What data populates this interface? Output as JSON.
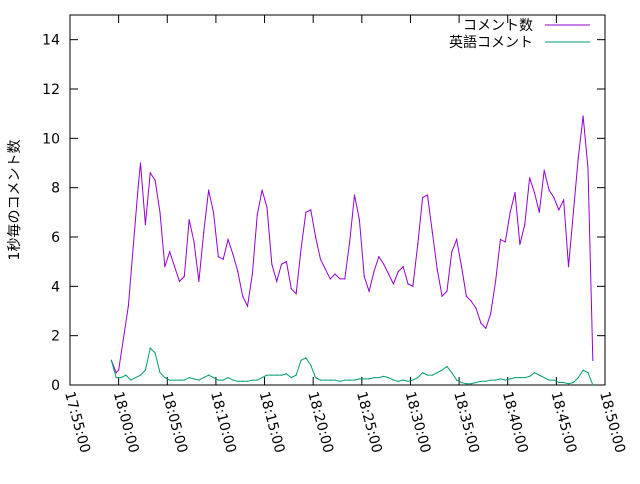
{
  "chart_data": {
    "type": "line",
    "ylabel": "1秒毎のコメント数",
    "xlabel": "",
    "title": "",
    "ylim": [
      0,
      15
    ],
    "yticks": [
      0,
      2,
      4,
      6,
      8,
      10,
      12,
      14
    ],
    "xlim": [
      "17:55:00",
      "18:50:00"
    ],
    "xticks": [
      "17:55:00",
      "18:00:00",
      "18:05:00",
      "18:10:00",
      "18:15:00",
      "18:20:00",
      "18:25:00",
      "18:30:00",
      "18:35:00",
      "18:40:00",
      "18:45:00",
      "18:50:00"
    ],
    "grid": false,
    "legend_position": "top-right",
    "series": [
      {
        "name": "コメント数",
        "color": "#9400d3",
        "points": [
          [
            "17:59:15",
            1.0
          ],
          [
            "17:59:45",
            0.5
          ],
          [
            "18:00:00",
            0.6
          ],
          [
            "18:01:00",
            3.2
          ],
          [
            "18:02:00",
            8.0
          ],
          [
            "18:02:15",
            9.0
          ],
          [
            "18:02:45",
            6.5
          ],
          [
            "18:03:15",
            8.6
          ],
          [
            "18:03:45",
            8.3
          ],
          [
            "18:04:15",
            7.0
          ],
          [
            "18:04:45",
            4.8
          ],
          [
            "18:05:15",
            5.4
          ],
          [
            "18:05:45",
            4.8
          ],
          [
            "18:06:15",
            4.2
          ],
          [
            "18:06:45",
            4.4
          ],
          [
            "18:07:15",
            6.7
          ],
          [
            "18:07:45",
            5.8
          ],
          [
            "18:08:15",
            4.2
          ],
          [
            "18:08:45",
            6.2
          ],
          [
            "18:09:15",
            7.9
          ],
          [
            "18:09:45",
            7.0
          ],
          [
            "18:10:15",
            5.2
          ],
          [
            "18:10:45",
            5.1
          ],
          [
            "18:11:15",
            5.9
          ],
          [
            "18:11:45",
            5.3
          ],
          [
            "18:12:15",
            4.6
          ],
          [
            "18:12:45",
            3.6
          ],
          [
            "18:13:15",
            3.2
          ],
          [
            "18:13:45",
            4.5
          ],
          [
            "18:14:15",
            6.9
          ],
          [
            "18:14:45",
            7.9
          ],
          [
            "18:15:15",
            7.2
          ],
          [
            "18:15:45",
            4.9
          ],
          [
            "18:16:15",
            4.2
          ],
          [
            "18:16:45",
            4.9
          ],
          [
            "18:17:15",
            5.0
          ],
          [
            "18:17:45",
            3.9
          ],
          [
            "18:18:15",
            3.7
          ],
          [
            "18:18:45",
            5.5
          ],
          [
            "18:19:15",
            7.0
          ],
          [
            "18:19:45",
            7.1
          ],
          [
            "18:20:15",
            6.0
          ],
          [
            "18:20:45",
            5.1
          ],
          [
            "18:21:15",
            4.7
          ],
          [
            "18:21:45",
            4.3
          ],
          [
            "18:22:15",
            4.5
          ],
          [
            "18:22:45",
            4.3
          ],
          [
            "18:23:15",
            4.3
          ],
          [
            "18:23:45",
            5.8
          ],
          [
            "18:24:15",
            7.7
          ],
          [
            "18:24:45",
            6.7
          ],
          [
            "18:25:15",
            4.4
          ],
          [
            "18:25:45",
            3.8
          ],
          [
            "18:26:15",
            4.6
          ],
          [
            "18:26:45",
            5.2
          ],
          [
            "18:27:15",
            4.9
          ],
          [
            "18:27:45",
            4.5
          ],
          [
            "18:28:15",
            4.1
          ],
          [
            "18:28:45",
            4.6
          ],
          [
            "18:29:15",
            4.8
          ],
          [
            "18:29:45",
            4.1
          ],
          [
            "18:30:15",
            4.0
          ],
          [
            "18:30:45",
            5.7
          ],
          [
            "18:31:15",
            7.6
          ],
          [
            "18:31:45",
            7.7
          ],
          [
            "18:32:15",
            6.2
          ],
          [
            "18:32:45",
            4.7
          ],
          [
            "18:33:15",
            3.6
          ],
          [
            "18:33:45",
            3.8
          ],
          [
            "18:34:15",
            5.4
          ],
          [
            "18:34:45",
            5.9
          ],
          [
            "18:35:15",
            4.8
          ],
          [
            "18:35:45",
            3.6
          ],
          [
            "18:36:15",
            3.4
          ],
          [
            "18:36:45",
            3.1
          ],
          [
            "18:37:15",
            2.5
          ],
          [
            "18:37:45",
            2.3
          ],
          [
            "18:38:15",
            2.9
          ],
          [
            "18:38:45",
            4.2
          ],
          [
            "18:39:15",
            5.9
          ],
          [
            "18:39:45",
            5.8
          ],
          [
            "18:40:15",
            7.0
          ],
          [
            "18:40:45",
            7.8
          ],
          [
            "18:41:15",
            5.7
          ],
          [
            "18:41:45",
            6.5
          ],
          [
            "18:42:15",
            8.4
          ],
          [
            "18:42:45",
            7.8
          ],
          [
            "18:43:15",
            7.0
          ],
          [
            "18:43:45",
            8.7
          ],
          [
            "18:44:15",
            7.9
          ],
          [
            "18:44:45",
            7.6
          ],
          [
            "18:45:15",
            7.1
          ],
          [
            "18:45:45",
            7.5
          ],
          [
            "18:46:15",
            4.8
          ],
          [
            "18:46:45",
            7.0
          ],
          [
            "18:47:15",
            9.2
          ],
          [
            "18:47:45",
            10.9
          ],
          [
            "18:48:15",
            8.8
          ],
          [
            "18:48:45",
            1.0
          ]
        ]
      },
      {
        "name": "英語コメント",
        "color": "#009e73",
        "points": [
          [
            "17:59:15",
            1.0
          ],
          [
            "17:59:45",
            0.3
          ],
          [
            "18:00:15",
            0.3
          ],
          [
            "18:00:45",
            0.4
          ],
          [
            "18:01:15",
            0.2
          ],
          [
            "18:01:45",
            0.3
          ],
          [
            "18:02:15",
            0.4
          ],
          [
            "18:02:45",
            0.6
          ],
          [
            "18:03:15",
            1.5
          ],
          [
            "18:03:45",
            1.3
          ],
          [
            "18:04:15",
            0.5
          ],
          [
            "18:04:45",
            0.3
          ],
          [
            "18:05:15",
            0.2
          ],
          [
            "18:05:45",
            0.2
          ],
          [
            "18:06:15",
            0.2
          ],
          [
            "18:06:45",
            0.2
          ],
          [
            "18:07:15",
            0.3
          ],
          [
            "18:07:45",
            0.25
          ],
          [
            "18:08:15",
            0.2
          ],
          [
            "18:08:45",
            0.3
          ],
          [
            "18:09:15",
            0.4
          ],
          [
            "18:09:45",
            0.3
          ],
          [
            "18:10:15",
            0.2
          ],
          [
            "18:10:45",
            0.2
          ],
          [
            "18:11:15",
            0.3
          ],
          [
            "18:11:45",
            0.2
          ],
          [
            "18:12:15",
            0.15
          ],
          [
            "18:12:45",
            0.15
          ],
          [
            "18:13:15",
            0.15
          ],
          [
            "18:13:45",
            0.2
          ],
          [
            "18:14:15",
            0.2
          ],
          [
            "18:14:45",
            0.3
          ],
          [
            "18:15:15",
            0.4
          ],
          [
            "18:15:45",
            0.4
          ],
          [
            "18:16:15",
            0.4
          ],
          [
            "18:16:45",
            0.4
          ],
          [
            "18:17:15",
            0.45
          ],
          [
            "18:17:45",
            0.3
          ],
          [
            "18:18:15",
            0.4
          ],
          [
            "18:18:45",
            1.0
          ],
          [
            "18:19:15",
            1.1
          ],
          [
            "18:19:45",
            0.8
          ],
          [
            "18:20:15",
            0.3
          ],
          [
            "18:20:45",
            0.2
          ],
          [
            "18:21:15",
            0.2
          ],
          [
            "18:21:45",
            0.2
          ],
          [
            "18:22:15",
            0.2
          ],
          [
            "18:22:45",
            0.15
          ],
          [
            "18:23:15",
            0.2
          ],
          [
            "18:23:45",
            0.2
          ],
          [
            "18:24:15",
            0.2
          ],
          [
            "18:24:45",
            0.25
          ],
          [
            "18:25:15",
            0.25
          ],
          [
            "18:25:45",
            0.25
          ],
          [
            "18:26:15",
            0.3
          ],
          [
            "18:26:45",
            0.3
          ],
          [
            "18:27:15",
            0.35
          ],
          [
            "18:27:45",
            0.3
          ],
          [
            "18:28:15",
            0.2
          ],
          [
            "18:28:45",
            0.15
          ],
          [
            "18:29:15",
            0.2
          ],
          [
            "18:29:45",
            0.15
          ],
          [
            "18:30:15",
            0.2
          ],
          [
            "18:30:45",
            0.3
          ],
          [
            "18:31:15",
            0.5
          ],
          [
            "18:31:45",
            0.4
          ],
          [
            "18:32:15",
            0.4
          ],
          [
            "18:32:45",
            0.5
          ],
          [
            "18:33:15",
            0.6
          ],
          [
            "18:33:45",
            0.75
          ],
          [
            "18:34:15",
            0.5
          ],
          [
            "18:34:45",
            0.2
          ],
          [
            "18:35:15",
            0.1
          ],
          [
            "18:35:45",
            0.05
          ],
          [
            "18:36:15",
            0.05
          ],
          [
            "18:36:45",
            0.1
          ],
          [
            "18:37:15",
            0.15
          ],
          [
            "18:37:45",
            0.15
          ],
          [
            "18:38:15",
            0.2
          ],
          [
            "18:38:45",
            0.2
          ],
          [
            "18:39:15",
            0.25
          ],
          [
            "18:39:45",
            0.2
          ],
          [
            "18:40:15",
            0.25
          ],
          [
            "18:40:45",
            0.3
          ],
          [
            "18:41:15",
            0.3
          ],
          [
            "18:41:45",
            0.3
          ],
          [
            "18:42:15",
            0.35
          ],
          [
            "18:42:45",
            0.5
          ],
          [
            "18:43:15",
            0.4
          ],
          [
            "18:43:45",
            0.3
          ],
          [
            "18:44:15",
            0.2
          ],
          [
            "18:44:45",
            0.2
          ],
          [
            "18:45:15",
            0.1
          ],
          [
            "18:45:45",
            0.1
          ],
          [
            "18:46:15",
            0.05
          ],
          [
            "18:46:45",
            0.1
          ],
          [
            "18:47:15",
            0.3
          ],
          [
            "18:47:45",
            0.6
          ],
          [
            "18:48:15",
            0.5
          ],
          [
            "18:48:45",
            0.0
          ]
        ]
      }
    ]
  }
}
